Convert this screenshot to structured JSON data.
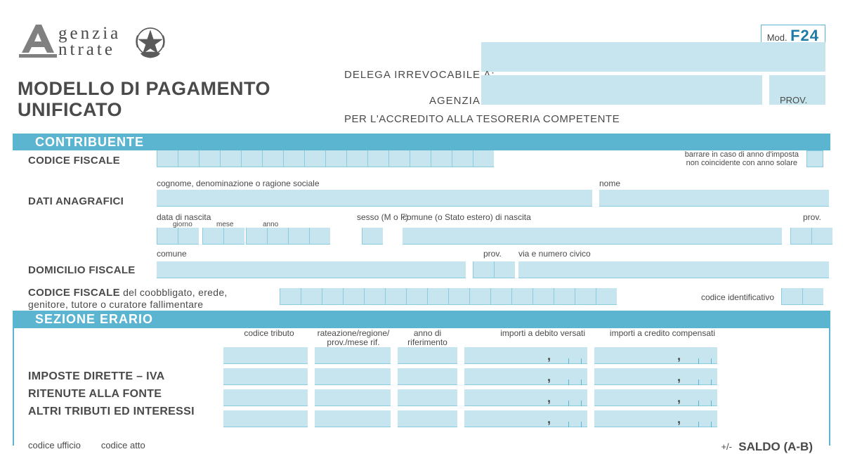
{
  "agency": {
    "name_line1": "genzia",
    "name_line2": "ntrate"
  },
  "mod_tag": {
    "prefix": "Mod.",
    "code": "F24"
  },
  "title": {
    "line1": "MODELLO DI PAGAMENTO",
    "line2": "UNIFICATO"
  },
  "delega": {
    "irrevocabile": "DELEGA IRREVOCABILE A:",
    "agenzia": "AGENZIA",
    "prov": "PROV.",
    "accredito": "PER L'ACCREDITO ALLA TESORERIA COMPETENTE"
  },
  "sections": {
    "contribuente": "CONTRIBUENTE",
    "erario": "SEZIONE ERARIO"
  },
  "fields": {
    "codice_fiscale": "CODICE FISCALE",
    "cf_note_l1": "barrare in caso di anno d'imposta",
    "cf_note_l2": "non coincidente con anno solare",
    "cognome": "cognome, denominazione o ragione sociale",
    "nome": "nome",
    "dati_anagrafici": "DATI ANAGRAFICI",
    "data_nascita": "data di nascita",
    "giorno": "giorno",
    "mese": "mese",
    "anno": "anno",
    "sesso": "sesso (M o F)",
    "comune_nascita": "comune (o Stato estero) di nascita",
    "prov": "prov.",
    "comune": "comune",
    "via": "via e numero civico",
    "domicilio_fiscale": "DOMICILIO FISCALE",
    "cf_coobbligato_1": "CODICE FISCALE",
    "cf_coobbligato_2": " del coobbligato, erede,",
    "cf_coobbligato_3": "genitore, tutore o curatore fallimentare",
    "codice_identificativo": "codice identificativo"
  },
  "erario": {
    "headers": {
      "codice_tributo": "codice tributo",
      "rateazione": "rateazione/regione/\nprov./mese rif.",
      "anno_rif": "anno di\nriferimento",
      "debito": "importi a debito versati",
      "credito": "importi a credito compensati"
    },
    "left_labels": {
      "l1": "IMPOSTE DIRETTE – IVA",
      "l2": "RITENUTE ALLA FONTE",
      "l3": "ALTRI TRIBUTI ED INTERESSI"
    },
    "bottom": {
      "codice_ufficio": "codice ufficio",
      "codice_atto": "codice atto",
      "pm": "+/-",
      "saldo": "SALDO  (A-B)"
    }
  },
  "colors": {
    "banner": "#5bb4d0",
    "fill": "#c6e5ee",
    "line": "#8accdf",
    "text": "#4a4a4a",
    "accent": "#1d7ba5"
  }
}
